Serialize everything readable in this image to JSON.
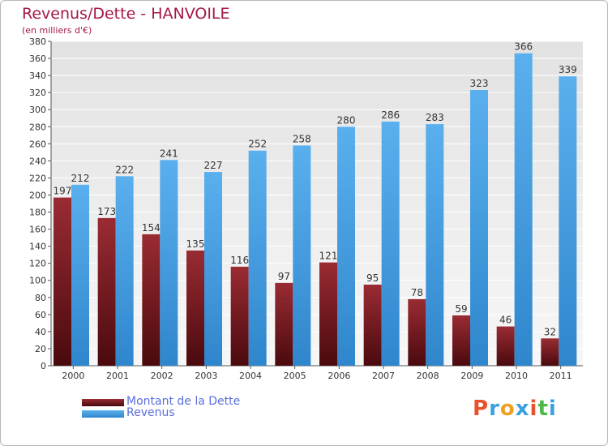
{
  "chart_data": {
    "type": "bar",
    "title": "Revenus/Dette - HANVOILE",
    "subtitle": "(en milliers d'€)",
    "categories": [
      "2000",
      "2001",
      "2002",
      "2003",
      "2004",
      "2005",
      "2006",
      "2007",
      "2008",
      "2009",
      "2010",
      "2011"
    ],
    "series": [
      {
        "name": "Montant de la Dette",
        "color": "#7a1a20",
        "values": [
          197,
          173,
          154,
          135,
          116,
          97,
          121,
          95,
          78,
          59,
          46,
          32
        ]
      },
      {
        "name": "Revenus",
        "color": "#4da3e6",
        "values": [
          212,
          222,
          241,
          227,
          252,
          258,
          280,
          286,
          283,
          323,
          366,
          339
        ]
      }
    ],
    "ylim": [
      0,
      380
    ],
    "ytick_step": 20,
    "grid": true,
    "legend_position": "bottom-left"
  },
  "logo": {
    "letters": [
      "P",
      "r",
      "o",
      "x",
      "i",
      "t",
      "i"
    ],
    "colors": [
      "#e8522c",
      "#3aa0e0",
      "#f0a020",
      "#3aa0e0",
      "#e8522c",
      "#4cb848",
      "#3aa0e0"
    ]
  }
}
